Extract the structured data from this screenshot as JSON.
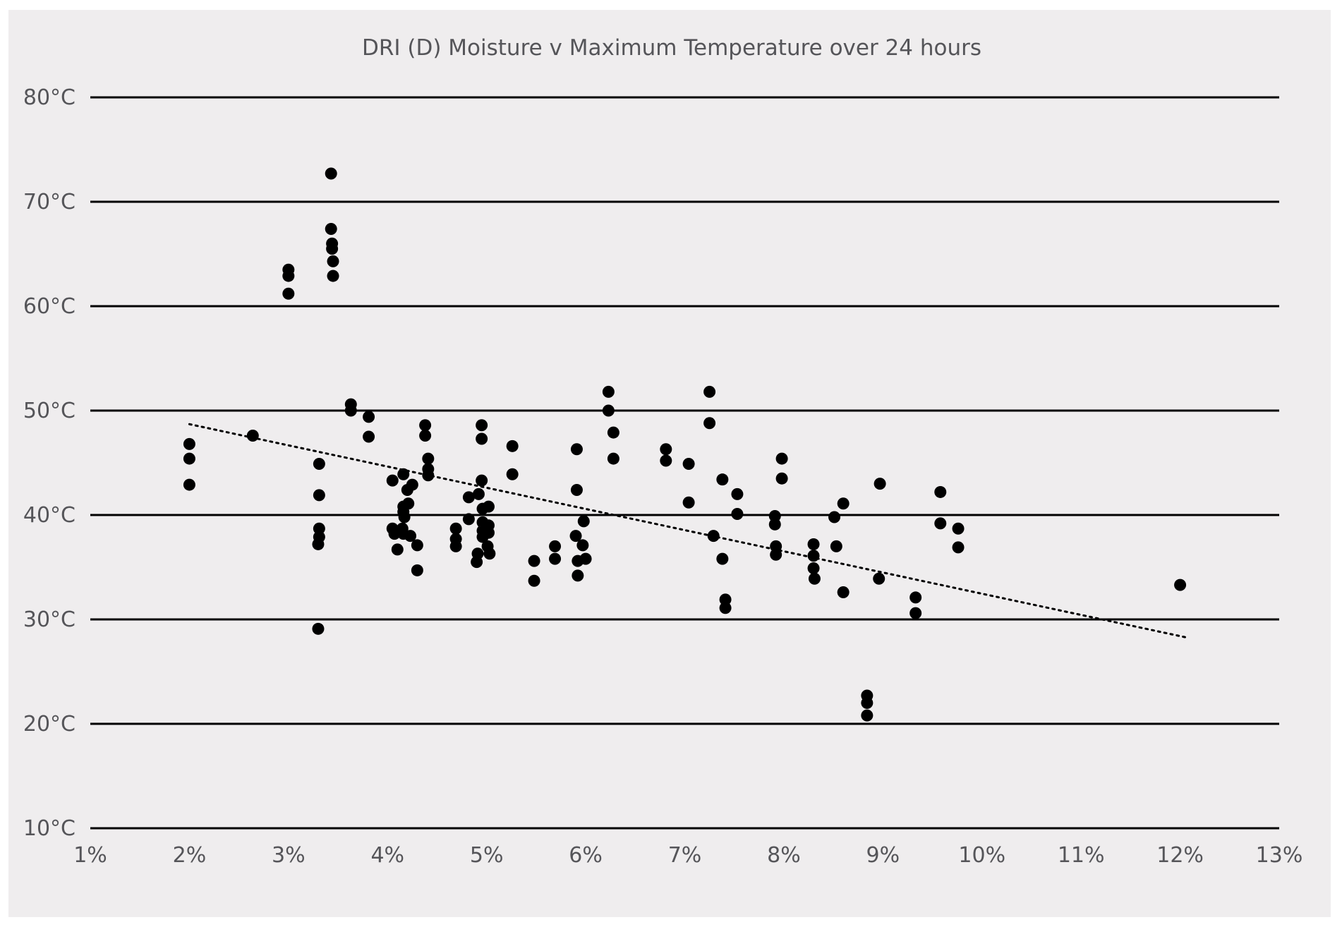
{
  "chart_data": {
    "type": "scatter",
    "title": "DRI (D) Moisture v Maximum Temperature over 24 hours",
    "xlabel": "",
    "ylabel": "",
    "xlim": [
      1,
      13
    ],
    "ylim": [
      10,
      80
    ],
    "x_ticks": [
      1,
      2,
      3,
      4,
      5,
      6,
      7,
      8,
      9,
      10,
      11,
      12,
      13
    ],
    "x_tick_labels": [
      "1%",
      "2%",
      "3%",
      "4%",
      "5%",
      "6%",
      "7%",
      "8%",
      "9%",
      "10%",
      "11%",
      "12%",
      "13%"
    ],
    "y_ticks": [
      10,
      20,
      30,
      40,
      50,
      60,
      70,
      80
    ],
    "y_tick_labels": [
      "10°C",
      "20°C",
      "30°C",
      "40°C",
      "50°C",
      "60°C",
      "70°C",
      "80°C"
    ],
    "grid": "horizontal",
    "legend": "none",
    "trendline": {
      "style": "dotted",
      "x": [
        2.0,
        12.05
      ],
      "y": [
        48.7,
        28.3
      ]
    },
    "marker_color": "#000000",
    "series": [
      {
        "points": [
          [
            2.0,
            46.8
          ],
          [
            2.0,
            45.4
          ],
          [
            2.0,
            42.9
          ],
          [
            2.64,
            47.6
          ],
          [
            3.0,
            63.5
          ],
          [
            3.0,
            62.9
          ],
          [
            3.0,
            61.2
          ],
          [
            3.43,
            72.7
          ],
          [
            3.43,
            67.4
          ],
          [
            3.44,
            66.0
          ],
          [
            3.44,
            65.5
          ],
          [
            3.45,
            64.3
          ],
          [
            3.45,
            62.9
          ],
          [
            3.31,
            44.9
          ],
          [
            3.31,
            41.9
          ],
          [
            3.31,
            38.7
          ],
          [
            3.31,
            37.9
          ],
          [
            3.3,
            37.2
          ],
          [
            3.3,
            29.1
          ],
          [
            3.63,
            50.6
          ],
          [
            3.63,
            50.0
          ],
          [
            3.81,
            49.4
          ],
          [
            3.81,
            47.5
          ],
          [
            4.05,
            43.3
          ],
          [
            4.05,
            38.7
          ],
          [
            4.07,
            38.2
          ],
          [
            4.1,
            36.7
          ],
          [
            4.16,
            43.9
          ],
          [
            4.16,
            40.8
          ],
          [
            4.16,
            40.3
          ],
          [
            4.17,
            39.8
          ],
          [
            4.15,
            38.7
          ],
          [
            4.16,
            38.2
          ],
          [
            4.2,
            42.4
          ],
          [
            4.21,
            41.1
          ],
          [
            4.23,
            38.0
          ],
          [
            4.25,
            42.9
          ],
          [
            4.3,
            37.1
          ],
          [
            4.3,
            34.7
          ],
          [
            4.38,
            48.6
          ],
          [
            4.38,
            47.6
          ],
          [
            4.41,
            45.4
          ],
          [
            4.41,
            44.4
          ],
          [
            4.41,
            43.8
          ],
          [
            4.69,
            38.7
          ],
          [
            4.69,
            37.7
          ],
          [
            4.69,
            37.0
          ],
          [
            4.82,
            41.7
          ],
          [
            4.82,
            39.6
          ],
          [
            4.91,
            36.3
          ],
          [
            4.9,
            35.5
          ],
          [
            4.92,
            42.0
          ],
          [
            4.95,
            48.6
          ],
          [
            4.95,
            47.3
          ],
          [
            4.95,
            43.3
          ],
          [
            4.96,
            40.6
          ],
          [
            4.96,
            39.3
          ],
          [
            4.96,
            38.5
          ],
          [
            4.96,
            37.9
          ],
          [
            5.02,
            40.8
          ],
          [
            5.02,
            39.0
          ],
          [
            5.02,
            38.3
          ],
          [
            5.01,
            37.0
          ],
          [
            5.03,
            36.3
          ],
          [
            5.26,
            46.6
          ],
          [
            5.26,
            43.9
          ],
          [
            5.48,
            35.6
          ],
          [
            5.48,
            33.7
          ],
          [
            5.69,
            37.0
          ],
          [
            5.69,
            35.8
          ],
          [
            5.91,
            46.3
          ],
          [
            5.91,
            42.4
          ],
          [
            5.9,
            38.0
          ],
          [
            5.92,
            35.6
          ],
          [
            5.92,
            34.2
          ],
          [
            5.98,
            39.4
          ],
          [
            5.97,
            37.1
          ],
          [
            6.0,
            35.8
          ],
          [
            6.23,
            51.8
          ],
          [
            6.23,
            50.0
          ],
          [
            6.28,
            47.9
          ],
          [
            6.28,
            45.4
          ],
          [
            6.81,
            46.3
          ],
          [
            6.81,
            45.2
          ],
          [
            7.04,
            44.9
          ],
          [
            7.04,
            41.2
          ],
          [
            7.25,
            51.8
          ],
          [
            7.25,
            48.8
          ],
          [
            7.29,
            38.0
          ],
          [
            7.38,
            43.4
          ],
          [
            7.38,
            35.8
          ],
          [
            7.41,
            31.9
          ],
          [
            7.41,
            31.1
          ],
          [
            7.53,
            42.0
          ],
          [
            7.53,
            40.1
          ],
          [
            7.91,
            39.9
          ],
          [
            7.91,
            39.1
          ],
          [
            7.92,
            37.0
          ],
          [
            7.92,
            36.2
          ],
          [
            7.98,
            45.4
          ],
          [
            7.98,
            43.5
          ],
          [
            8.3,
            37.2
          ],
          [
            8.3,
            36.1
          ],
          [
            8.3,
            34.9
          ],
          [
            8.31,
            33.9
          ],
          [
            8.51,
            39.8
          ],
          [
            8.53,
            37.0
          ],
          [
            8.6,
            41.1
          ],
          [
            8.6,
            32.6
          ],
          [
            8.84,
            22.7
          ],
          [
            8.84,
            22.0
          ],
          [
            8.84,
            20.8
          ],
          [
            8.97,
            43.0
          ],
          [
            8.96,
            33.9
          ],
          [
            9.33,
            32.1
          ],
          [
            9.33,
            30.6
          ],
          [
            9.58,
            42.2
          ],
          [
            9.58,
            39.2
          ],
          [
            9.76,
            38.7
          ],
          [
            9.76,
            36.9
          ],
          [
            12.0,
            33.3
          ]
        ]
      }
    ]
  }
}
